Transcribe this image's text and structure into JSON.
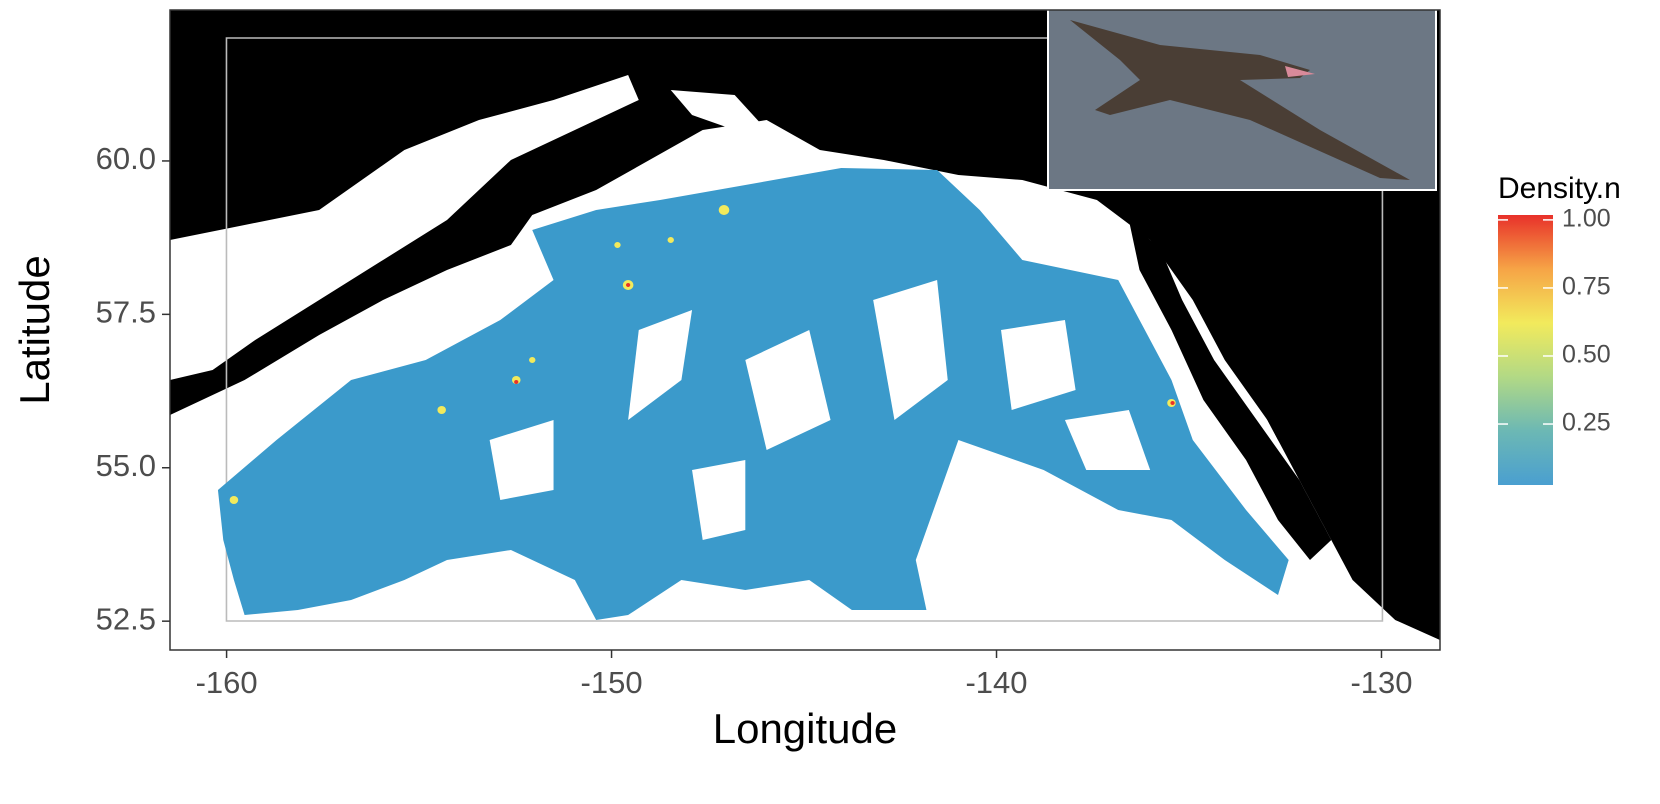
{
  "chart_data": {
    "type": "map",
    "x_label": "Longitude",
    "y_label": "Latitude",
    "xlim": [
      -161.47,
      -128.48
    ],
    "ylim": [
      52.03,
      62.46
    ],
    "xticks": [
      -160,
      -150,
      -140,
      -130
    ],
    "yticks": [
      52.5,
      {
        "value": 55,
        "label": "55.0"
      },
      57.5,
      {
        "value": 60,
        "label": "60.0"
      }
    ],
    "legend": {
      "title": "Density.n",
      "limits": [
        0.026,
        1.018
      ],
      "ticks": [
        0.25,
        {
          "value": 0.5,
          "label": "0.50"
        },
        0.75,
        {
          "value": 1,
          "label": "1.00"
        }
      ],
      "colors": [
        "#4a9fd0",
        "#6cb8b4",
        "#b2d985",
        "#f2ea5c",
        "#f6a446",
        "#e8312a"
      ]
    }
  }
}
